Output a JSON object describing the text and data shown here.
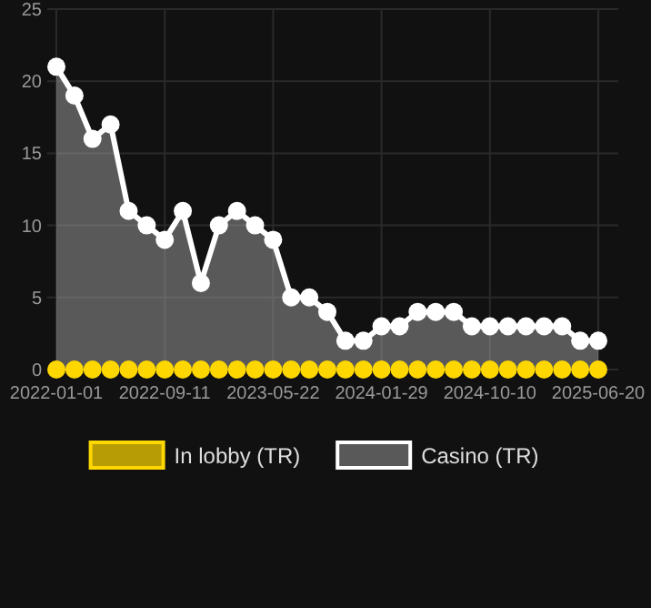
{
  "chart_data": {
    "type": "area",
    "categories": [
      "2022-01-01",
      null,
      null,
      null,
      null,
      null,
      "2022-09-11",
      null,
      null,
      null,
      null,
      null,
      "2023-05-22",
      null,
      null,
      null,
      null,
      null,
      "2024-01-29",
      null,
      null,
      null,
      null,
      null,
      "2024-10-10",
      null,
      null,
      null,
      null,
      null,
      "2025-06-20"
    ],
    "series": [
      {
        "name": "In lobby (TR)",
        "type": "scatter",
        "color": "#ffd700",
        "values": [
          0,
          0,
          0,
          0,
          0,
          0,
          0,
          0,
          0,
          0,
          0,
          0,
          0,
          0,
          0,
          0,
          0,
          0,
          0,
          0,
          0,
          0,
          0,
          0,
          0,
          0,
          0,
          0,
          0,
          0,
          0
        ]
      },
      {
        "name": "Casino (TR)",
        "color": "#ffffff",
        "values": [
          21,
          19,
          16,
          17,
          11,
          10,
          9,
          11,
          6,
          10,
          11,
          10,
          9,
          5,
          5,
          4,
          2,
          2,
          3,
          3,
          4,
          4,
          4,
          3,
          3,
          3,
          3,
          3,
          3,
          2,
          2
        ]
      }
    ],
    "ylim": [
      0,
      25
    ],
    "yticks": [
      0,
      5,
      10,
      15,
      20,
      25
    ],
    "grid": true,
    "legend": "bottom",
    "marker": "circle"
  }
}
